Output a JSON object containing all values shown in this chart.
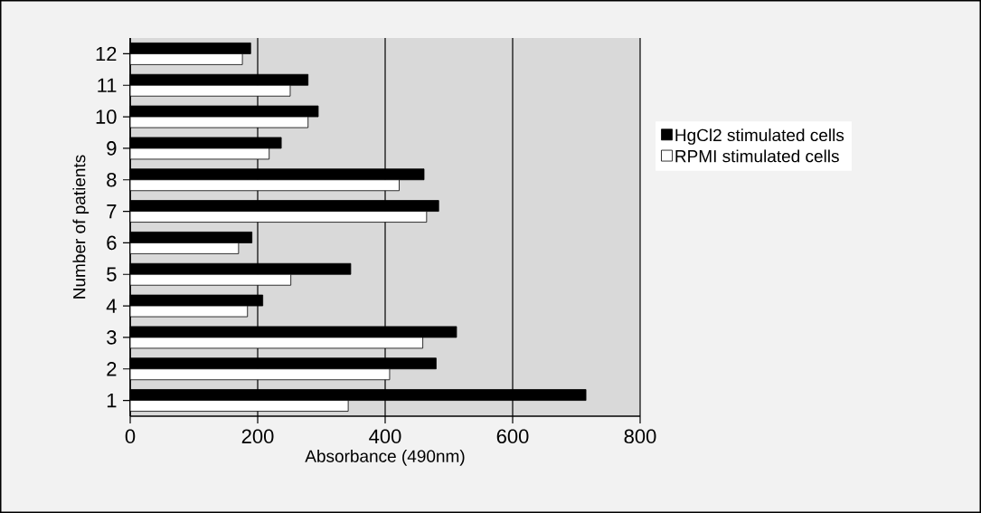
{
  "chart_data": {
    "type": "bar",
    "orientation": "horizontal",
    "xlabel": "Absorbance (490nm)",
    "ylabel": "Number of patients",
    "categories": [
      "12",
      "11",
      "10",
      "9",
      "8",
      "7",
      "6",
      "5",
      "4",
      "3",
      "2",
      "1"
    ],
    "series": [
      {
        "name": "HgCl2 stimulated cells",
        "color": "#000000",
        "values": [
          189,
          279,
          295,
          237,
          461,
          484,
          191,
          346,
          208,
          512,
          480,
          715
        ]
      },
      {
        "name": "RPMI stimulated cells",
        "color": "#ffffff",
        "values": [
          176,
          251,
          279,
          218,
          422,
          465,
          170,
          252,
          184,
          459,
          407,
          342
        ]
      }
    ],
    "xlim": [
      0,
      800
    ],
    "xticks": [
      0,
      200,
      400,
      600,
      800
    ],
    "grid": "x",
    "legend": "right"
  }
}
